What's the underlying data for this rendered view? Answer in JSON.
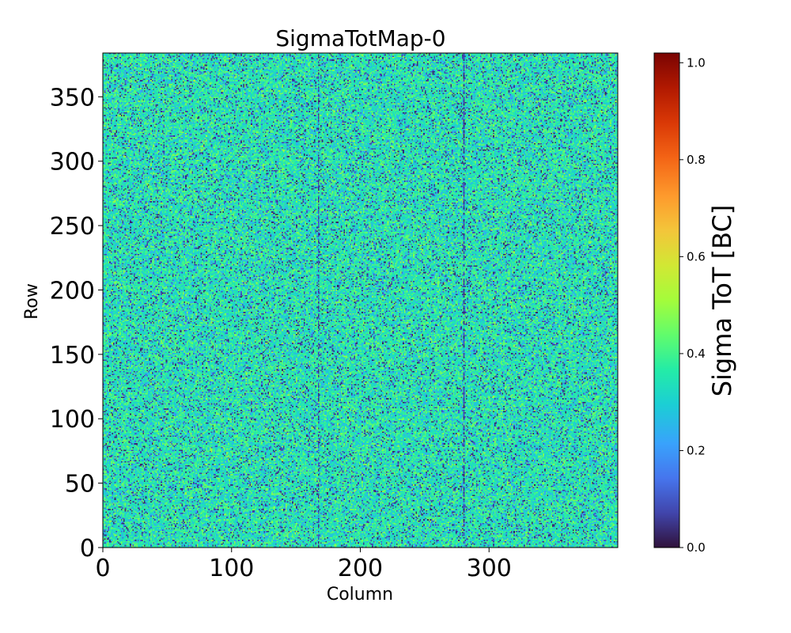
{
  "chart_data": {
    "type": "heatmap",
    "title": "SigmaTotMap-0",
    "xlabel": "Column",
    "ylabel": "Row",
    "xlim": [
      0,
      400
    ],
    "ylim": [
      0,
      384
    ],
    "x_ticks": [
      0,
      100,
      200,
      300
    ],
    "y_ticks": [
      0,
      50,
      100,
      150,
      200,
      250,
      300,
      350
    ],
    "x_tick_labels": [
      "0",
      "100",
      "200",
      "300"
    ],
    "y_tick_labels": [
      "0",
      "50",
      "100",
      "150",
      "200",
      "250",
      "300",
      "350"
    ],
    "grid": false,
    "colormap": "turbo",
    "colorbar": {
      "label": "Sigma ToT [BC]",
      "range": [
        0.0,
        1.02
      ],
      "ticks": [
        0.0,
        0.2,
        0.4,
        0.6,
        0.8,
        1.0
      ],
      "tick_labels": [
        "0.0",
        "0.2",
        "0.4",
        "0.6",
        "0.8",
        "1.0"
      ]
    },
    "value_distribution": {
      "typical_min": 0.0,
      "typical_max": 0.55,
      "dominant_level": 0.35,
      "description_of_pattern": "per-pixel noise map"
    },
    "dark_columns": [
      167,
      280
    ]
  }
}
